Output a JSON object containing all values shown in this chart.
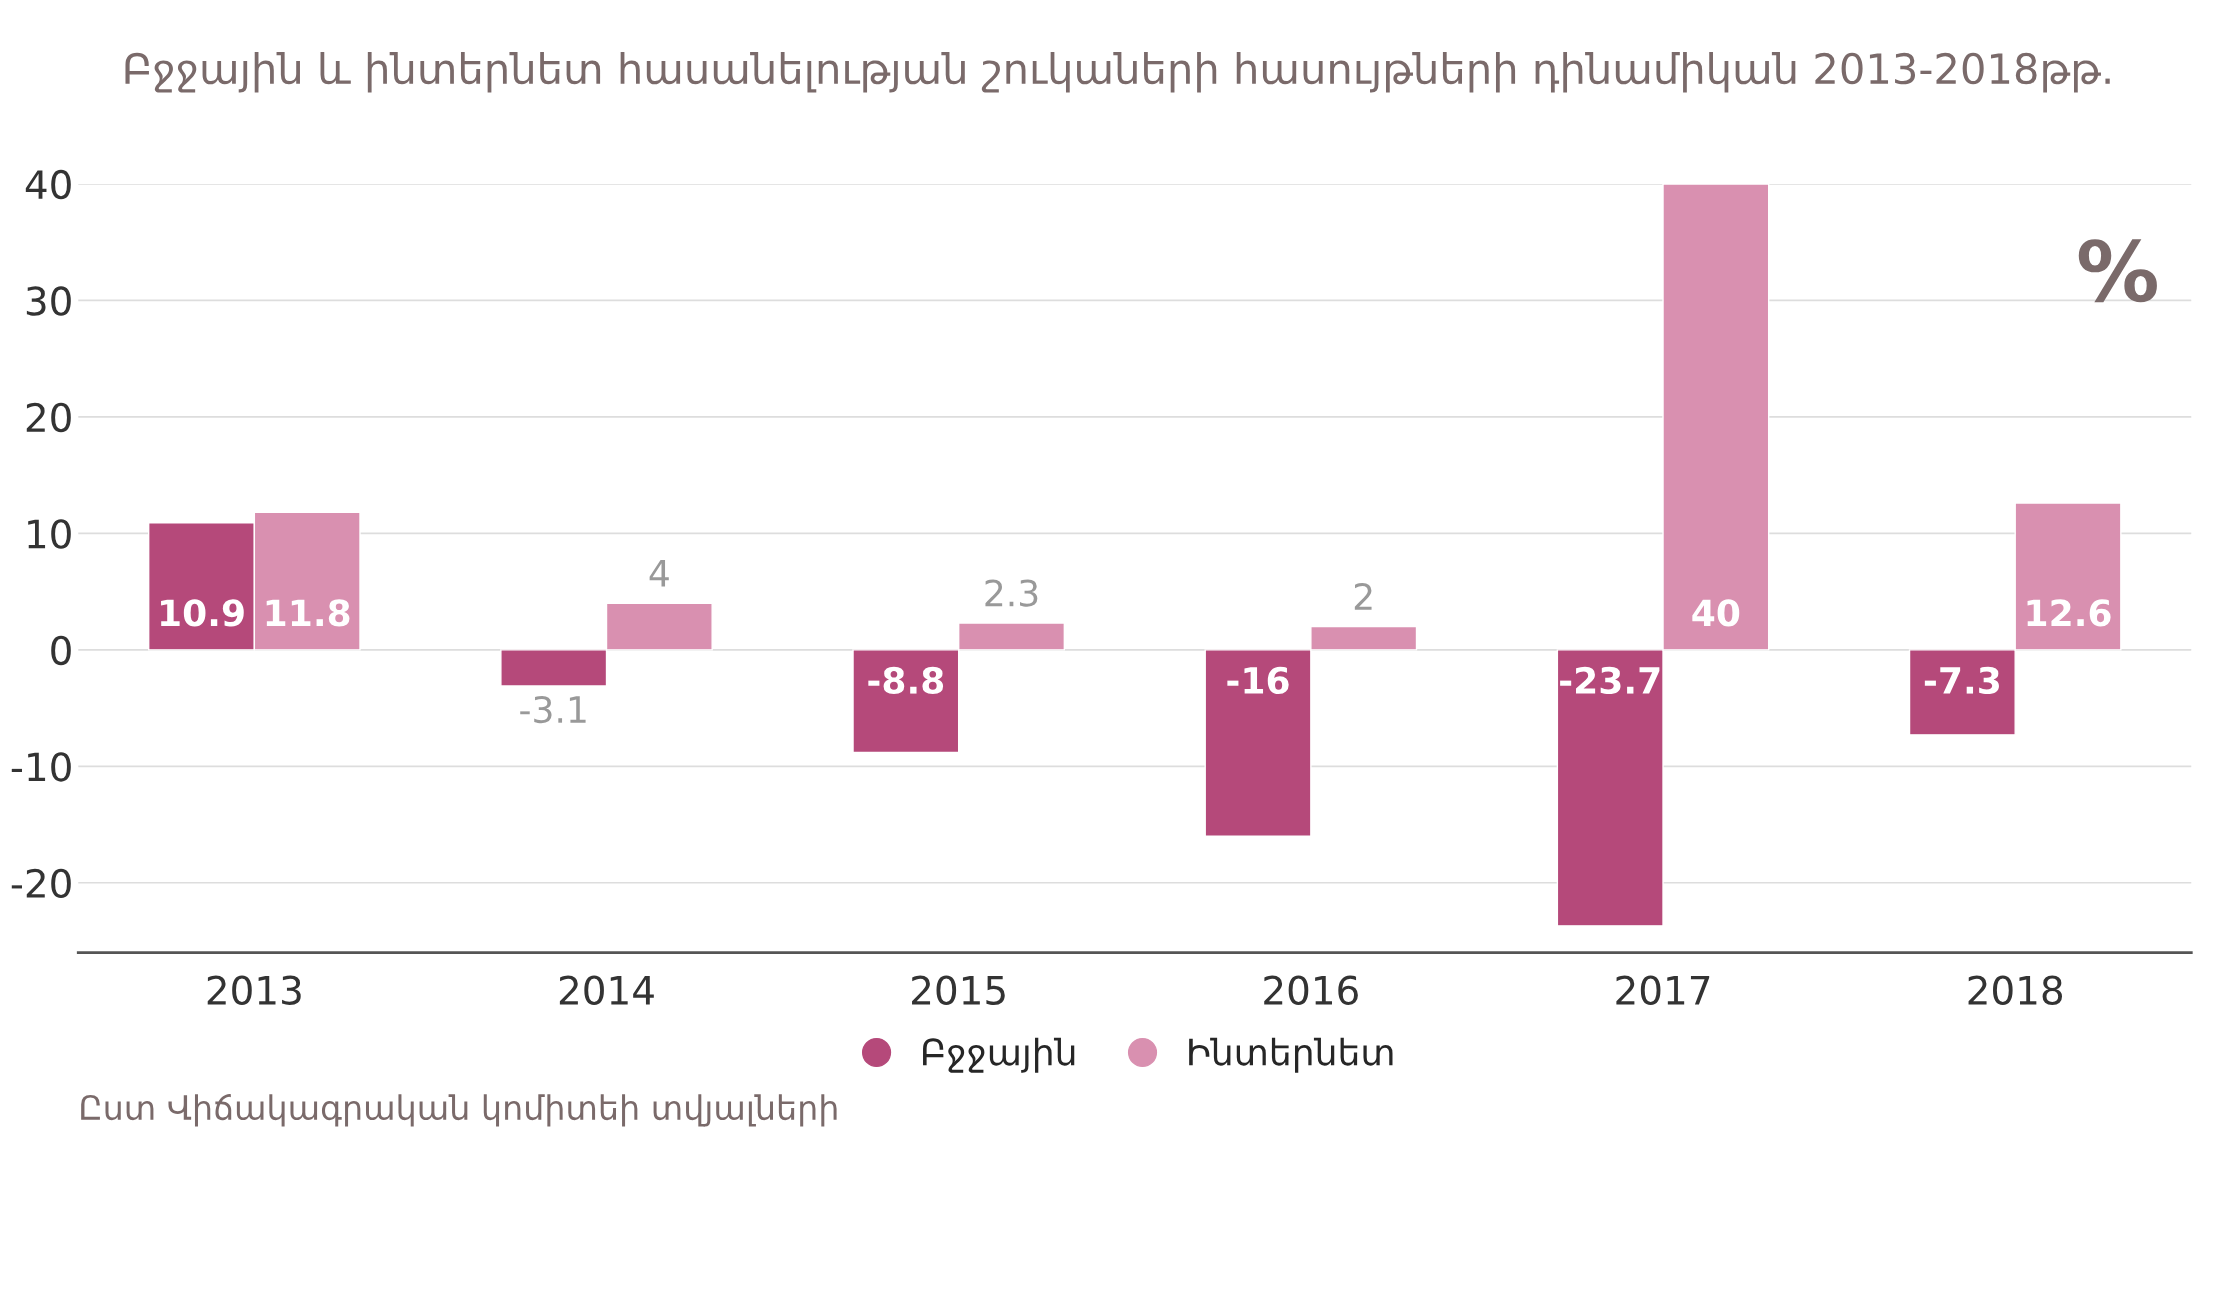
{
  "chart_data": {
    "type": "bar",
    "title": "Բջջային և ինտերնետ հասանելության շուկաների հասույթների դինամիկան 2013-2018թթ.",
    "categories": [
      "2013",
      "2014",
      "2015",
      "2016",
      "2017",
      "2018"
    ],
    "series": [
      {
        "name": "Բջջային",
        "color": "#b5497a",
        "values": [
          10.9,
          -3.1,
          -8.8,
          -16,
          -23.7,
          -7.3
        ]
      },
      {
        "name": "Ինտերնետ",
        "color": "#d990b0",
        "values": [
          11.8,
          4,
          2.3,
          2,
          40,
          12.6
        ]
      }
    ],
    "ylim": [
      -26,
      40
    ],
    "yticks": [
      -20,
      -10,
      0,
      10,
      20,
      30,
      40
    ],
    "grid": "y",
    "legend": "bottom",
    "data_labels": true,
    "annotations": [
      "%",
      "Ըստ Վիճակագրական կոմիտեի տվյալների"
    ]
  }
}
